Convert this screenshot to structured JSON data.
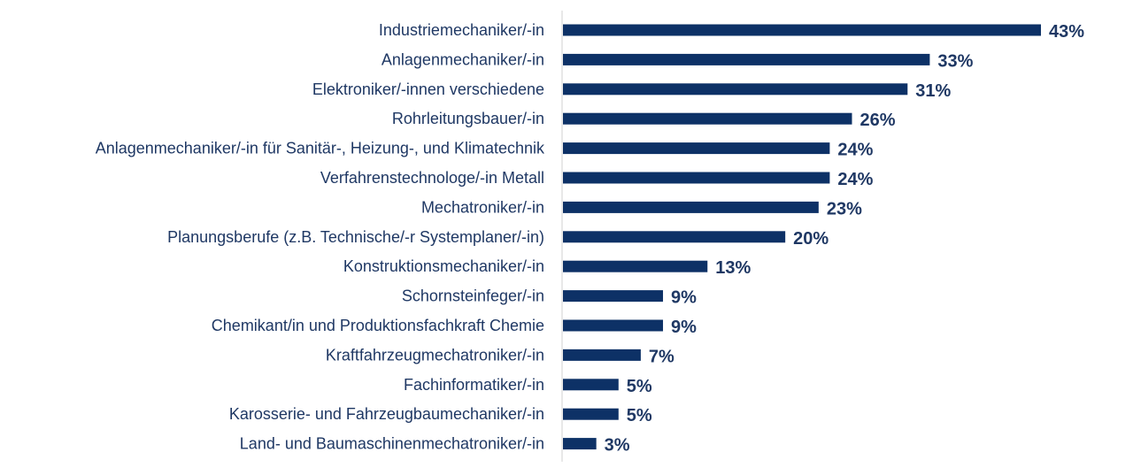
{
  "chart_data": {
    "type": "bar",
    "orientation": "horizontal",
    "categories": [
      "Industriemechaniker/-in",
      "Anlagenmechaniker/-in ",
      "Elektroniker/-innen verschiedene",
      "Rohrleitungsbauer/-in",
      "Anlagenmechaniker/-in für Sanitär-, Heizung-, und Klimatechnik",
      "Verfahrenstechnologe/-in Metall",
      "Mechatroniker/-in",
      "Planungsberufe (z.B. Technische/-r Systemplaner/-in)",
      "Konstruktionsmechaniker/-in",
      "Schornsteinfeger/-in",
      "Chemikant/in und Produktionsfachkraft Chemie",
      "Kraftfahrzeugmechatroniker/-in",
      "Fachinformatiker/-in",
      "Karosserie- und Fahrzeugbaumechaniker/-in",
      "Land- und Baumaschinenmechatroniker/-in"
    ],
    "values": [
      43,
      33,
      31,
      26,
      24,
      24,
      23,
      20,
      13,
      9,
      9,
      7,
      5,
      5,
      3
    ],
    "value_labels": [
      "43%",
      "33%",
      "31%",
      "26%",
      "24%",
      "24%",
      "23%",
      "20%",
      "13%",
      "9%",
      "9%",
      "7%",
      "5%",
      "5%",
      "3%"
    ],
    "unit": "%",
    "xlim": [
      0,
      43
    ],
    "grid": false,
    "legend": "none",
    "bar_color": "#0d3166",
    "text_color": "#1f3864",
    "axis_color": "#d0d0d0"
  }
}
